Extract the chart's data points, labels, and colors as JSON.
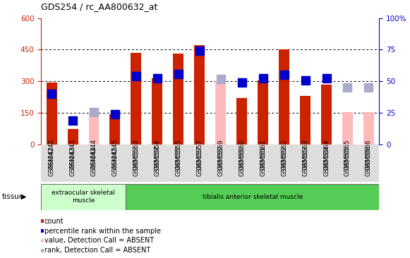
{
  "title": "GDS254 / rc_AA800632_at",
  "categories": [
    "GSM4242",
    "GSM4243",
    "GSM4244",
    "GSM4245",
    "GSM5553",
    "GSM5554",
    "GSM5555",
    "GSM5557",
    "GSM5559",
    "GSM5560",
    "GSM5561",
    "GSM5562",
    "GSM5563",
    "GSM5564",
    "GSM5565",
    "GSM5566"
  ],
  "red_bars": [
    295,
    75,
    null,
    145,
    435,
    315,
    430,
    470,
    null,
    220,
    305,
    450,
    230,
    285,
    null,
    null
  ],
  "pink_bars": [
    null,
    null,
    145,
    null,
    null,
    null,
    null,
    null,
    300,
    null,
    null,
    null,
    null,
    null,
    155,
    155
  ],
  "blue_dots": [
    240,
    115,
    null,
    145,
    325,
    315,
    335,
    445,
    null,
    295,
    315,
    330,
    305,
    315,
    null,
    null
  ],
  "lavender_dots": [
    null,
    null,
    155,
    null,
    null,
    null,
    null,
    null,
    310,
    null,
    null,
    null,
    null,
    null,
    270,
    270
  ],
  "ylim_left": [
    0,
    600
  ],
  "ylim_right": [
    0,
    100
  ],
  "yticks_left": [
    0,
    150,
    300,
    450,
    600
  ],
  "yticks_right": [
    0,
    25,
    50,
    75,
    100
  ],
  "tissue_groups": [
    {
      "label": "extraocular skeletal\nmuscle",
      "start": 0,
      "end": 4,
      "color": "#ccffcc"
    },
    {
      "label": "tibialis anterior skeletal muscle",
      "start": 4,
      "end": 16,
      "color": "#55cc55"
    }
  ],
  "legend_items": [
    {
      "label": "count",
      "color": "#cc2200"
    },
    {
      "label": "percentile rank within the sample",
      "color": "#0000cc"
    },
    {
      "label": "value, Detection Call = ABSENT",
      "color": "#ffbbbb"
    },
    {
      "label": "rank, Detection Call = ABSENT",
      "color": "#aaaacc"
    }
  ],
  "red_color": "#cc2200",
  "pink_color": "#ffbbbb",
  "blue_color": "#0000cc",
  "lavender_color": "#aaaacc",
  "ylabel_left_color": "#cc2200",
  "ylabel_right_color": "#0000cc",
  "bar_width": 0.5,
  "dot_size": 8
}
